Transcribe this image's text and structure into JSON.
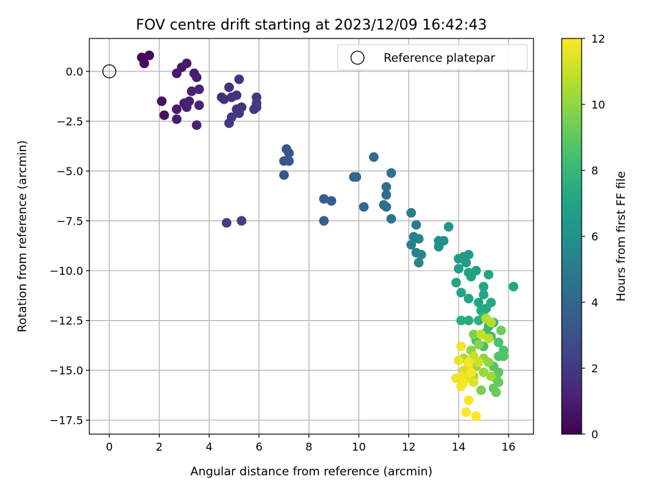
{
  "chart_data": {
    "type": "scatter",
    "title": "FOV centre drift starting at 2023/12/09 16:42:43",
    "xlabel": "Angular distance from reference (arcmin)",
    "ylabel": "Rotation from reference (arcmin)",
    "xlim": [
      -0.8,
      17.0
    ],
    "ylim": [
      -18.2,
      1.65
    ],
    "xticks": [
      "0",
      "2",
      "4",
      "6",
      "8",
      "10",
      "12",
      "14",
      "16"
    ],
    "xtick_values": [
      0,
      2,
      4,
      6,
      8,
      10,
      12,
      14,
      16
    ],
    "yticks": [
      "0.0",
      "−2.5",
      "−5.0",
      "−7.5",
      "−10.0",
      "−12.5",
      "−15.0",
      "−17.5"
    ],
    "ytick_values": [
      0,
      -2.5,
      -5,
      -7.5,
      -10,
      -12.5,
      -15,
      -17.5
    ],
    "grid": true,
    "legend": {
      "label": "Reference platepar",
      "location": "upper right"
    },
    "reference_point": {
      "x": 0.0,
      "y": 0.0
    },
    "colorbar": {
      "label": "Hours from first FF file",
      "colormap": "viridis",
      "range": [
        0,
        12
      ],
      "ticks": [
        "0",
        "2",
        "4",
        "6",
        "8",
        "10",
        "12"
      ],
      "tick_values": [
        0,
        2,
        4,
        6,
        8,
        10,
        12
      ]
    },
    "points": [
      {
        "x": 1.3,
        "y": 0.7,
        "t": 0.2
      },
      {
        "x": 1.6,
        "y": 0.8,
        "t": 0.3
      },
      {
        "x": 1.4,
        "y": 0.4,
        "t": 0.3
      },
      {
        "x": 2.1,
        "y": -1.5,
        "t": 0.5
      },
      {
        "x": 2.2,
        "y": -2.2,
        "t": 0.5
      },
      {
        "x": 2.7,
        "y": -0.1,
        "t": 0.8
      },
      {
        "x": 2.9,
        "y": 0.2,
        "t": 0.8
      },
      {
        "x": 3.1,
        "y": 0.4,
        "t": 0.9
      },
      {
        "x": 3.4,
        "y": -0.1,
        "t": 0.9
      },
      {
        "x": 3.5,
        "y": -0.3,
        "t": 1.0
      },
      {
        "x": 2.7,
        "y": -1.9,
        "t": 0.9
      },
      {
        "x": 2.7,
        "y": -2.4,
        "t": 1.0
      },
      {
        "x": 3.0,
        "y": -1.6,
        "t": 1.0
      },
      {
        "x": 3.2,
        "y": -1.5,
        "t": 1.1
      },
      {
        "x": 3.1,
        "y": -1.8,
        "t": 1.1
      },
      {
        "x": 3.3,
        "y": -1.0,
        "t": 1.1
      },
      {
        "x": 3.5,
        "y": -2.7,
        "t": 1.2
      },
      {
        "x": 3.6,
        "y": -0.9,
        "t": 1.2
      },
      {
        "x": 3.6,
        "y": -1.7,
        "t": 1.2
      },
      {
        "x": 4.5,
        "y": -1.3,
        "t": 1.6
      },
      {
        "x": 4.6,
        "y": -1.4,
        "t": 1.6
      },
      {
        "x": 4.8,
        "y": -0.8,
        "t": 1.7
      },
      {
        "x": 4.9,
        "y": -1.3,
        "t": 1.7
      },
      {
        "x": 5.1,
        "y": -1.2,
        "t": 1.7
      },
      {
        "x": 5.2,
        "y": -0.4,
        "t": 1.8
      },
      {
        "x": 5.1,
        "y": -1.9,
        "t": 1.8
      },
      {
        "x": 5.2,
        "y": -2.1,
        "t": 1.8
      },
      {
        "x": 5.3,
        "y": -1.8,
        "t": 1.8
      },
      {
        "x": 4.9,
        "y": -2.3,
        "t": 1.9
      },
      {
        "x": 4.8,
        "y": -2.6,
        "t": 1.9
      },
      {
        "x": 5.8,
        "y": -1.9,
        "t": 2.0
      },
      {
        "x": 5.9,
        "y": -1.8,
        "t": 2.0
      },
      {
        "x": 5.9,
        "y": -1.6,
        "t": 2.0
      },
      {
        "x": 5.9,
        "y": -1.3,
        "t": 2.0
      },
      {
        "x": 4.7,
        "y": -7.6,
        "t": 2.1
      },
      {
        "x": 5.3,
        "y": -7.5,
        "t": 2.2
      },
      {
        "x": 7.1,
        "y": -3.9,
        "t": 3.2
      },
      {
        "x": 7.2,
        "y": -4.1,
        "t": 3.2
      },
      {
        "x": 7.0,
        "y": -4.5,
        "t": 3.2
      },
      {
        "x": 7.2,
        "y": -4.5,
        "t": 3.3
      },
      {
        "x": 7.0,
        "y": -5.2,
        "t": 3.3
      },
      {
        "x": 8.6,
        "y": -6.4,
        "t": 3.5
      },
      {
        "x": 8.9,
        "y": -6.5,
        "t": 3.5
      },
      {
        "x": 8.6,
        "y": -7.5,
        "t": 3.6
      },
      {
        "x": 9.8,
        "y": -5.3,
        "t": 3.9
      },
      {
        "x": 9.9,
        "y": -5.3,
        "t": 3.9
      },
      {
        "x": 10.2,
        "y": -6.8,
        "t": 4.1
      },
      {
        "x": 10.6,
        "y": -4.3,
        "t": 4.2
      },
      {
        "x": 11.1,
        "y": -5.8,
        "t": 4.3
      },
      {
        "x": 11.1,
        "y": -6.2,
        "t": 4.3
      },
      {
        "x": 11.0,
        "y": -6.7,
        "t": 4.3
      },
      {
        "x": 11.1,
        "y": -6.8,
        "t": 4.4
      },
      {
        "x": 11.3,
        "y": -5.1,
        "t": 4.4
      },
      {
        "x": 11.3,
        "y": -7.4,
        "t": 4.5
      },
      {
        "x": 12.1,
        "y": -7.1,
        "t": 5.0
      },
      {
        "x": 12.3,
        "y": -7.7,
        "t": 5.1
      },
      {
        "x": 12.2,
        "y": -8.3,
        "t": 5.2
      },
      {
        "x": 12.1,
        "y": -8.7,
        "t": 5.2
      },
      {
        "x": 12.4,
        "y": -8.4,
        "t": 5.3
      },
      {
        "x": 12.3,
        "y": -9.1,
        "t": 5.3
      },
      {
        "x": 12.5,
        "y": -9.2,
        "t": 5.4
      },
      {
        "x": 12.4,
        "y": -9.6,
        "t": 5.4
      },
      {
        "x": 13.2,
        "y": -8.5,
        "t": 6.0
      },
      {
        "x": 13.2,
        "y": -8.8,
        "t": 6.0
      },
      {
        "x": 13.4,
        "y": -8.5,
        "t": 6.0
      },
      {
        "x": 13.6,
        "y": -7.8,
        "t": 6.2
      },
      {
        "x": 14.0,
        "y": -9.4,
        "t": 6.5
      },
      {
        "x": 14.2,
        "y": -9.3,
        "t": 6.5
      },
      {
        "x": 14.4,
        "y": -9.2,
        "t": 6.6
      },
      {
        "x": 14.3,
        "y": -9.6,
        "t": 6.6
      },
      {
        "x": 14.0,
        "y": -9.9,
        "t": 6.7
      },
      {
        "x": 14.4,
        "y": -10.1,
        "t": 6.7
      },
      {
        "x": 14.5,
        "y": -10.3,
        "t": 6.8
      },
      {
        "x": 14.7,
        "y": -10.0,
        "t": 6.8
      },
      {
        "x": 13.9,
        "y": -10.6,
        "t": 6.9
      },
      {
        "x": 14.1,
        "y": -11.1,
        "t": 6.9
      },
      {
        "x": 14.4,
        "y": -11.4,
        "t": 7.0
      },
      {
        "x": 14.8,
        "y": -11.6,
        "t": 7.1
      },
      {
        "x": 15.0,
        "y": -11.2,
        "t": 7.1
      },
      {
        "x": 15.2,
        "y": -10.2,
        "t": 7.0
      },
      {
        "x": 15.0,
        "y": -10.8,
        "t": 7.1
      },
      {
        "x": 15.3,
        "y": -11.6,
        "t": 7.2
      },
      {
        "x": 15.1,
        "y": -11.9,
        "t": 7.3
      },
      {
        "x": 14.9,
        "y": -12.0,
        "t": 7.3
      },
      {
        "x": 14.1,
        "y": -12.5,
        "t": 7.4
      },
      {
        "x": 14.4,
        "y": -12.5,
        "t": 7.4
      },
      {
        "x": 16.2,
        "y": -10.8,
        "t": 7.2
      },
      {
        "x": 14.8,
        "y": -12.5,
        "t": 7.6
      },
      {
        "x": 15.0,
        "y": -12.3,
        "t": 7.7
      },
      {
        "x": 15.2,
        "y": -12.8,
        "t": 7.8
      },
      {
        "x": 15.4,
        "y": -12.6,
        "t": 7.9
      },
      {
        "x": 15.1,
        "y": -13.1,
        "t": 8.1
      },
      {
        "x": 15.3,
        "y": -13.3,
        "t": 8.3
      },
      {
        "x": 14.7,
        "y": -13.5,
        "t": 8.4
      },
      {
        "x": 15.0,
        "y": -13.8,
        "t": 8.5
      },
      {
        "x": 15.6,
        "y": -13.6,
        "t": 8.5
      },
      {
        "x": 15.6,
        "y": -14.3,
        "t": 8.7
      },
      {
        "x": 15.8,
        "y": -14.0,
        "t": 8.6
      },
      {
        "x": 15.8,
        "y": -14.3,
        "t": 8.7
      },
      {
        "x": 15.4,
        "y": -14.8,
        "t": 8.8
      },
      {
        "x": 15.6,
        "y": -15.1,
        "t": 8.9
      },
      {
        "x": 15.5,
        "y": -15.4,
        "t": 9.0
      },
      {
        "x": 15.6,
        "y": -15.6,
        "t": 9.1
      },
      {
        "x": 15.4,
        "y": -15.9,
        "t": 9.1
      },
      {
        "x": 15.5,
        "y": -16.1,
        "t": 9.2
      },
      {
        "x": 14.9,
        "y": -16.0,
        "t": 9.6
      },
      {
        "x": 15.7,
        "y": -13.0,
        "t": 9.3
      },
      {
        "x": 14.6,
        "y": -13.2,
        "t": 9.7
      },
      {
        "x": 14.8,
        "y": -13.7,
        "t": 9.8
      },
      {
        "x": 14.5,
        "y": -14.0,
        "t": 9.9
      },
      {
        "x": 15.0,
        "y": -14.4,
        "t": 10.0
      },
      {
        "x": 15.2,
        "y": -14.6,
        "t": 10.0
      },
      {
        "x": 14.7,
        "y": -14.8,
        "t": 10.1
      },
      {
        "x": 15.0,
        "y": -15.1,
        "t": 10.2
      },
      {
        "x": 15.3,
        "y": -15.3,
        "t": 10.3
      },
      {
        "x": 14.6,
        "y": -15.3,
        "t": 10.5
      },
      {
        "x": 14.2,
        "y": -14.4,
        "t": 10.4
      },
      {
        "x": 15.1,
        "y": -12.4,
        "t": 10.6
      },
      {
        "x": 15.3,
        "y": -12.6,
        "t": 10.7
      },
      {
        "x": 15.2,
        "y": -13.4,
        "t": 10.8
      },
      {
        "x": 14.9,
        "y": -13.2,
        "t": 10.9
      },
      {
        "x": 14.6,
        "y": -14.3,
        "t": 11.0
      },
      {
        "x": 14.8,
        "y": -14.6,
        "t": 11.1
      },
      {
        "x": 14.4,
        "y": -14.7,
        "t": 11.2
      },
      {
        "x": 14.2,
        "y": -15.0,
        "t": 11.3
      },
      {
        "x": 14.6,
        "y": -15.6,
        "t": 11.4
      },
      {
        "x": 14.3,
        "y": -15.4,
        "t": 11.5
      },
      {
        "x": 14.0,
        "y": -14.5,
        "t": 11.6
      },
      {
        "x": 14.1,
        "y": -15.3,
        "t": 11.7
      },
      {
        "x": 13.9,
        "y": -15.4,
        "t": 11.7
      },
      {
        "x": 14.2,
        "y": -15.6,
        "t": 11.8
      },
      {
        "x": 14.1,
        "y": -15.8,
        "t": 11.8
      },
      {
        "x": 14.5,
        "y": -15.1,
        "t": 11.9
      },
      {
        "x": 14.4,
        "y": -14.6,
        "t": 11.9
      },
      {
        "x": 14.1,
        "y": -13.8,
        "t": 11.8
      },
      {
        "x": 14.4,
        "y": -16.5,
        "t": 11.9
      },
      {
        "x": 14.3,
        "y": -17.1,
        "t": 12.0
      },
      {
        "x": 14.7,
        "y": -17.3,
        "t": 12.0
      }
    ]
  }
}
